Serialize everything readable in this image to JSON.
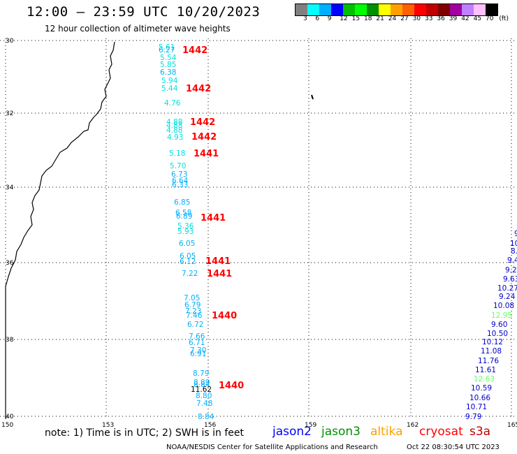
{
  "header": {
    "title": "12:00 – 23:59 UTC 10/20/2023",
    "subtitle": "12 hour collection of altimeter wave heights"
  },
  "legend": {
    "colors": [
      "#808080",
      "#00ffff",
      "#00b0ff",
      "#0000ff",
      "#00c000",
      "#00ff00",
      "#009000",
      "#ffff00",
      "#ffa000",
      "#ff6000",
      "#ff0000",
      "#c00000",
      "#800000",
      "#a000a0",
      "#c080ff",
      "#ffc0ff",
      "#000000"
    ],
    "labels": [
      "3",
      "6",
      "9",
      "12",
      "15",
      "18",
      "21",
      "24",
      "27",
      "30",
      "33",
      "36",
      "39",
      "42",
      "45",
      "70",
      "(ft)"
    ]
  },
  "axes": {
    "lat_labels": [
      "30",
      "32",
      "34",
      "36",
      "38",
      "40"
    ],
    "lon_labels": [
      "150",
      "153",
      "156",
      "159",
      "162",
      "165"
    ]
  },
  "track_west": {
    "values": [
      "5.61",
      "6.27",
      "5.54",
      "5.85",
      "6.38",
      "5.94",
      "5.44",
      "4.76",
      "4.88",
      "4.88",
      "4.88",
      "4.93",
      "5.18",
      "5.70",
      "6.73",
      "6.64",
      "6.33",
      "6.85",
      "6.58",
      "6.89",
      "5.36",
      "5.93",
      "6.05",
      "6.05",
      "6.12",
      "7.22",
      "7.05",
      "6.79",
      "7.23",
      "7.46",
      "6.72",
      "7.66",
      "6.71",
      "7.30",
      "6.91",
      "8.79",
      "8.89",
      "8.84",
      "11.62",
      "8.80",
      "7.48",
      "8.84"
    ],
    "times": [
      "1442",
      "1442",
      "1442",
      "1442",
      "1441",
      "1441",
      "1441",
      "1441",
      "1440",
      "1440"
    ]
  },
  "track_east": {
    "values": [
      "9.",
      "10.",
      "8.",
      "9.4",
      "9.2",
      "9.63",
      "10.27",
      "9.24",
      "10.08",
      "12.95",
      "9.60",
      "10.50",
      "10.12",
      "11.08",
      "11.76",
      "11.61",
      "12.63",
      "10.59",
      "10.66",
      "10.71",
      "9.79"
    ]
  },
  "footer": {
    "note": "note:  1) Time is in UTC; 2) SWH is in feet",
    "satellites": [
      "jason2",
      "jason3",
      "altika",
      "cryosat",
      "s3a"
    ],
    "sat_colors": [
      "#0000ff",
      "#009000",
      "#ffa000",
      "#ff0000",
      "#c00000"
    ],
    "credit": "NOAA/NESDIS Center for Satellite Applications and Research",
    "timestamp": "Oct 22 08:30:54 UTC 2023"
  }
}
